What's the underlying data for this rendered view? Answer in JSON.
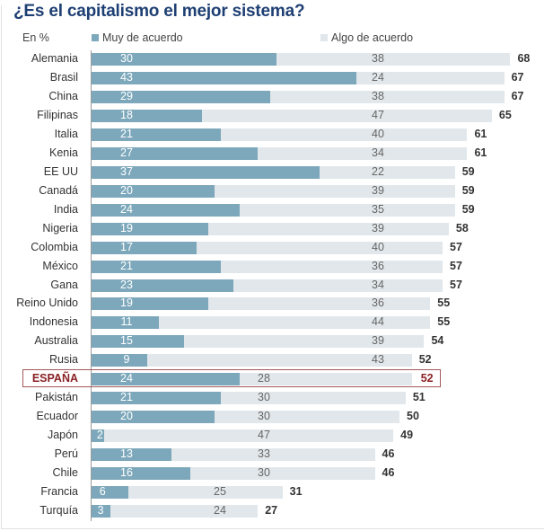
{
  "chart_data": {
    "type": "bar",
    "orientation": "horizontal",
    "stacked": true,
    "title": "¿Es el capitalismo el mejor sistema?",
    "unit_label": "En %",
    "xlabel": "",
    "ylabel": "",
    "xlim": [
      0,
      70
    ],
    "grid": false,
    "legend": {
      "placement": "top",
      "entries": [
        {
          "name": "Muy de acuerdo",
          "color": "#7da8bb"
        },
        {
          "name": "Algo de acuerdo",
          "color": "#e1e7eb"
        }
      ]
    },
    "highlight": "ESPAÑA",
    "categories": [
      "Alemania",
      "Brasil",
      "China",
      "Filipinas",
      "Italia",
      "Kenia",
      "EE UU",
      "Canadá",
      "India",
      "Nigeria",
      "Colombia",
      "México",
      "Gana",
      "Reino Unido",
      "Indonesia",
      "Australia",
      "Rusia",
      "ESPAÑA",
      "Pakistán",
      "Ecuador",
      "Japón",
      "Perú",
      "Chile",
      "Francia",
      "Turquía"
    ],
    "series": [
      {
        "name": "Muy de acuerdo",
        "values": [
          30,
          43,
          29,
          18,
          21,
          27,
          37,
          20,
          24,
          19,
          17,
          21,
          23,
          19,
          11,
          15,
          9,
          24,
          21,
          20,
          2,
          13,
          16,
          6,
          3
        ]
      },
      {
        "name": "Algo de acuerdo",
        "values": [
          38,
          24,
          38,
          47,
          40,
          34,
          22,
          39,
          35,
          39,
          40,
          36,
          34,
          36,
          44,
          39,
          43,
          28,
          30,
          30,
          47,
          33,
          30,
          25,
          24
        ]
      }
    ],
    "totals": [
      68,
      67,
      67,
      65,
      61,
      61,
      59,
      59,
      59,
      58,
      57,
      57,
      57,
      55,
      55,
      54,
      52,
      52,
      51,
      50,
      49,
      46,
      46,
      31,
      27
    ]
  },
  "colors": {
    "title": "#1e3f73",
    "highlight": "#8a2124",
    "dark_bar": "#7da8bb",
    "light_bar": "#e1e7eb"
  }
}
